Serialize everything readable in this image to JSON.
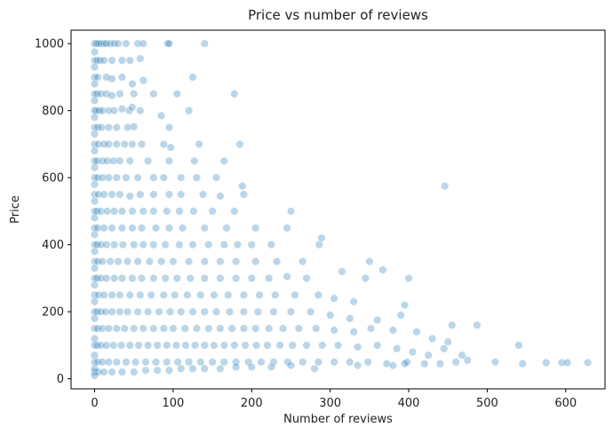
{
  "chart_data": {
    "type": "scatter",
    "title": "Price vs number of reviews",
    "xlabel": "Number of reviews",
    "ylabel": "Price",
    "xlim": [
      -30,
      650
    ],
    "ylim": [
      -30,
      1040
    ],
    "xticks": [
      0,
      100,
      200,
      300,
      400,
      500,
      600
    ],
    "yticks": [
      0,
      200,
      400,
      600,
      800,
      1000
    ],
    "grid": false,
    "legend": "none",
    "color": "#1f77b4",
    "points": [
      [
        0,
        1000
      ],
      [
        2,
        1000
      ],
      [
        5,
        1000
      ],
      [
        8,
        1000
      ],
      [
        12,
        1000
      ],
      [
        15,
        1000
      ],
      [
        20,
        1000
      ],
      [
        25,
        1000
      ],
      [
        30,
        1000
      ],
      [
        40,
        1000
      ],
      [
        55,
        1000
      ],
      [
        62,
        1000
      ],
      [
        93,
        1000
      ],
      [
        95,
        1000
      ],
      [
        140,
        1000
      ],
      [
        0,
        950
      ],
      [
        3,
        950
      ],
      [
        7,
        950
      ],
      [
        12,
        950
      ],
      [
        22,
        950
      ],
      [
        35,
        950
      ],
      [
        45,
        950
      ],
      [
        58,
        955
      ],
      [
        0,
        900
      ],
      [
        4,
        900
      ],
      [
        15,
        900
      ],
      [
        22,
        895
      ],
      [
        35,
        900
      ],
      [
        48,
        880
      ],
      [
        62,
        890
      ],
      [
        125,
        900
      ],
      [
        0,
        850
      ],
      [
        3,
        850
      ],
      [
        8,
        850
      ],
      [
        15,
        850
      ],
      [
        22,
        845
      ],
      [
        32,
        850
      ],
      [
        50,
        850
      ],
      [
        75,
        850
      ],
      [
        105,
        850
      ],
      [
        178,
        850
      ],
      [
        0,
        800
      ],
      [
        2,
        800
      ],
      [
        6,
        800
      ],
      [
        10,
        800
      ],
      [
        18,
        800
      ],
      [
        25,
        800
      ],
      [
        35,
        805
      ],
      [
        44,
        800
      ],
      [
        48,
        810
      ],
      [
        58,
        800
      ],
      [
        85,
        785
      ],
      [
        120,
        800
      ],
      [
        0,
        750
      ],
      [
        4,
        750
      ],
      [
        9,
        750
      ],
      [
        18,
        750
      ],
      [
        28,
        750
      ],
      [
        42,
        750
      ],
      [
        50,
        752
      ],
      [
        95,
        750
      ],
      [
        0,
        700
      ],
      [
        5,
        700
      ],
      [
        12,
        700
      ],
      [
        18,
        700
      ],
      [
        28,
        700
      ],
      [
        38,
        700
      ],
      [
        48,
        700
      ],
      [
        60,
        700
      ],
      [
        88,
        700
      ],
      [
        97,
        690
      ],
      [
        133,
        700
      ],
      [
        185,
        700
      ],
      [
        0,
        650
      ],
      [
        3,
        650
      ],
      [
        10,
        650
      ],
      [
        16,
        650
      ],
      [
        24,
        650
      ],
      [
        32,
        650
      ],
      [
        45,
        650
      ],
      [
        68,
        650
      ],
      [
        95,
        650
      ],
      [
        127,
        650
      ],
      [
        165,
        650
      ],
      [
        0,
        600
      ],
      [
        4,
        600
      ],
      [
        10,
        600
      ],
      [
        18,
        600
      ],
      [
        28,
        600
      ],
      [
        40,
        600
      ],
      [
        55,
        600
      ],
      [
        75,
        600
      ],
      [
        88,
        600
      ],
      [
        110,
        600
      ],
      [
        130,
        600
      ],
      [
        155,
        600
      ],
      [
        188,
        575
      ],
      [
        446,
        575
      ],
      [
        0,
        550
      ],
      [
        5,
        550
      ],
      [
        12,
        550
      ],
      [
        22,
        550
      ],
      [
        32,
        550
      ],
      [
        45,
        545
      ],
      [
        58,
        550
      ],
      [
        75,
        550
      ],
      [
        95,
        550
      ],
      [
        110,
        550
      ],
      [
        138,
        550
      ],
      [
        160,
        545
      ],
      [
        190,
        550
      ],
      [
        0,
        500
      ],
      [
        3,
        500
      ],
      [
        8,
        500
      ],
      [
        16,
        500
      ],
      [
        25,
        500
      ],
      [
        35,
        500
      ],
      [
        48,
        500
      ],
      [
        62,
        500
      ],
      [
        75,
        500
      ],
      [
        92,
        500
      ],
      [
        108,
        500
      ],
      [
        126,
        500
      ],
      [
        150,
        500
      ],
      [
        178,
        500
      ],
      [
        250,
        500
      ],
      [
        0,
        450
      ],
      [
        4,
        450
      ],
      [
        12,
        450
      ],
      [
        22,
        450
      ],
      [
        35,
        450
      ],
      [
        48,
        450
      ],
      [
        60,
        450
      ],
      [
        78,
        450
      ],
      [
        95,
        450
      ],
      [
        112,
        450
      ],
      [
        140,
        450
      ],
      [
        168,
        450
      ],
      [
        205,
        450
      ],
      [
        245,
        450
      ],
      [
        0,
        400
      ],
      [
        3,
        400
      ],
      [
        8,
        400
      ],
      [
        15,
        400
      ],
      [
        25,
        400
      ],
      [
        36,
        400
      ],
      [
        50,
        400
      ],
      [
        62,
        400
      ],
      [
        75,
        400
      ],
      [
        90,
        400
      ],
      [
        108,
        400
      ],
      [
        125,
        400
      ],
      [
        145,
        400
      ],
      [
        165,
        400
      ],
      [
        182,
        400
      ],
      [
        200,
        400
      ],
      [
        225,
        400
      ],
      [
        286,
        400
      ],
      [
        289,
        420
      ],
      [
        0,
        350
      ],
      [
        4,
        350
      ],
      [
        10,
        350
      ],
      [
        20,
        350
      ],
      [
        30,
        350
      ],
      [
        42,
        350
      ],
      [
        55,
        350
      ],
      [
        70,
        350
      ],
      [
        85,
        350
      ],
      [
        100,
        350
      ],
      [
        120,
        350
      ],
      [
        140,
        350
      ],
      [
        160,
        350
      ],
      [
        180,
        350
      ],
      [
        205,
        350
      ],
      [
        232,
        350
      ],
      [
        265,
        350
      ],
      [
        0,
        300
      ],
      [
        3,
        300
      ],
      [
        8,
        300
      ],
      [
        15,
        300
      ],
      [
        25,
        300
      ],
      [
        35,
        300
      ],
      [
        48,
        300
      ],
      [
        60,
        300
      ],
      [
        75,
        300
      ],
      [
        90,
        300
      ],
      [
        105,
        300
      ],
      [
        122,
        300
      ],
      [
        140,
        300
      ],
      [
        160,
        300
      ],
      [
        180,
        300
      ],
      [
        200,
        300
      ],
      [
        222,
        300
      ],
      [
        245,
        305
      ],
      [
        270,
        300
      ],
      [
        315,
        320
      ],
      [
        345,
        300
      ],
      [
        350,
        350
      ],
      [
        367,
        325
      ],
      [
        400,
        300
      ],
      [
        0,
        250
      ],
      [
        5,
        250
      ],
      [
        12,
        250
      ],
      [
        22,
        250
      ],
      [
        32,
        250
      ],
      [
        45,
        250
      ],
      [
        58,
        250
      ],
      [
        72,
        250
      ],
      [
        88,
        250
      ],
      [
        102,
        250
      ],
      [
        118,
        250
      ],
      [
        135,
        250
      ],
      [
        152,
        250
      ],
      [
        170,
        250
      ],
      [
        190,
        250
      ],
      [
        210,
        250
      ],
      [
        230,
        250
      ],
      [
        255,
        250
      ],
      [
        285,
        250
      ],
      [
        305,
        240
      ],
      [
        330,
        230
      ],
      [
        395,
        220
      ],
      [
        0,
        200
      ],
      [
        3,
        200
      ],
      [
        8,
        200
      ],
      [
        14,
        200
      ],
      [
        22,
        200
      ],
      [
        32,
        200
      ],
      [
        42,
        200
      ],
      [
        55,
        200
      ],
      [
        68,
        200
      ],
      [
        82,
        200
      ],
      [
        96,
        200
      ],
      [
        110,
        200
      ],
      [
        125,
        200
      ],
      [
        140,
        200
      ],
      [
        155,
        200
      ],
      [
        172,
        200
      ],
      [
        190,
        200
      ],
      [
        208,
        200
      ],
      [
        228,
        200
      ],
      [
        250,
        200
      ],
      [
        275,
        200
      ],
      [
        300,
        190
      ],
      [
        325,
        180
      ],
      [
        360,
        175
      ],
      [
        390,
        190
      ],
      [
        455,
        160
      ],
      [
        0,
        150
      ],
      [
        4,
        150
      ],
      [
        10,
        150
      ],
      [
        18,
        150
      ],
      [
        28,
        150
      ],
      [
        38,
        150
      ],
      [
        50,
        150
      ],
      [
        62,
        150
      ],
      [
        75,
        150
      ],
      [
        88,
        150
      ],
      [
        100,
        150
      ],
      [
        115,
        150
      ],
      [
        130,
        150
      ],
      [
        145,
        150
      ],
      [
        160,
        150
      ],
      [
        175,
        150
      ],
      [
        190,
        150
      ],
      [
        205,
        150
      ],
      [
        222,
        150
      ],
      [
        240,
        150
      ],
      [
        260,
        150
      ],
      [
        282,
        150
      ],
      [
        305,
        145
      ],
      [
        330,
        140
      ],
      [
        352,
        150
      ],
      [
        380,
        145
      ],
      [
        410,
        140
      ],
      [
        430,
        120
      ],
      [
        450,
        110
      ],
      [
        487,
        160
      ],
      [
        0,
        100
      ],
      [
        3,
        100
      ],
      [
        8,
        100
      ],
      [
        15,
        100
      ],
      [
        24,
        100
      ],
      [
        34,
        100
      ],
      [
        45,
        100
      ],
      [
        56,
        100
      ],
      [
        68,
        100
      ],
      [
        80,
        100
      ],
      [
        92,
        100
      ],
      [
        104,
        100
      ],
      [
        116,
        100
      ],
      [
        128,
        100
      ],
      [
        140,
        100
      ],
      [
        152,
        100
      ],
      [
        165,
        100
      ],
      [
        178,
        100
      ],
      [
        192,
        100
      ],
      [
        206,
        100
      ],
      [
        220,
        100
      ],
      [
        236,
        100
      ],
      [
        252,
        100
      ],
      [
        270,
        100
      ],
      [
        290,
        100
      ],
      [
        310,
        100
      ],
      [
        335,
        95
      ],
      [
        360,
        100
      ],
      [
        385,
        90
      ],
      [
        405,
        80
      ],
      [
        425,
        70
      ],
      [
        445,
        90
      ],
      [
        468,
        70
      ],
      [
        540,
        100
      ],
      [
        0,
        50
      ],
      [
        4,
        50
      ],
      [
        10,
        50
      ],
      [
        18,
        50
      ],
      [
        28,
        50
      ],
      [
        40,
        50
      ],
      [
        52,
        50
      ],
      [
        65,
        50
      ],
      [
        78,
        50
      ],
      [
        92,
        50
      ],
      [
        106,
        50
      ],
      [
        120,
        50
      ],
      [
        135,
        50
      ],
      [
        150,
        50
      ],
      [
        165,
        50
      ],
      [
        180,
        50
      ],
      [
        196,
        50
      ],
      [
        212,
        50
      ],
      [
        228,
        50
      ],
      [
        246,
        50
      ],
      [
        265,
        50
      ],
      [
        285,
        50
      ],
      [
        305,
        50
      ],
      [
        325,
        50
      ],
      [
        348,
        50
      ],
      [
        372,
        45
      ],
      [
        398,
        50
      ],
      [
        420,
        45
      ],
      [
        440,
        45
      ],
      [
        460,
        50
      ],
      [
        475,
        55
      ],
      [
        510,
        50
      ],
      [
        545,
        45
      ],
      [
        575,
        48
      ],
      [
        595,
        48
      ],
      [
        602,
        48
      ],
      [
        628,
        48
      ],
      [
        0,
        20
      ],
      [
        5,
        20
      ],
      [
        12,
        20
      ],
      [
        22,
        20
      ],
      [
        35,
        20
      ],
      [
        50,
        20
      ],
      [
        65,
        25
      ],
      [
        80,
        25
      ],
      [
        95,
        25
      ],
      [
        110,
        30
      ],
      [
        125,
        30
      ],
      [
        140,
        30
      ],
      [
        160,
        30
      ],
      [
        180,
        35
      ],
      [
        200,
        35
      ],
      [
        225,
        35
      ],
      [
        250,
        40
      ],
      [
        280,
        30
      ],
      [
        335,
        40
      ],
      [
        380,
        40
      ],
      [
        395,
        45
      ],
      [
        0,
        10
      ],
      [
        0,
        30
      ],
      [
        0,
        70
      ],
      [
        0,
        120
      ],
      [
        0,
        180
      ],
      [
        0,
        230
      ],
      [
        0,
        280
      ],
      [
        0,
        330
      ],
      [
        0,
        380
      ],
      [
        0,
        430
      ],
      [
        0,
        480
      ],
      [
        0,
        530
      ],
      [
        0,
        580
      ],
      [
        0,
        630
      ],
      [
        0,
        680
      ],
      [
        0,
        730
      ],
      [
        0,
        780
      ],
      [
        0,
        830
      ],
      [
        0,
        880
      ],
      [
        0,
        930
      ],
      [
        0,
        975
      ]
    ]
  }
}
